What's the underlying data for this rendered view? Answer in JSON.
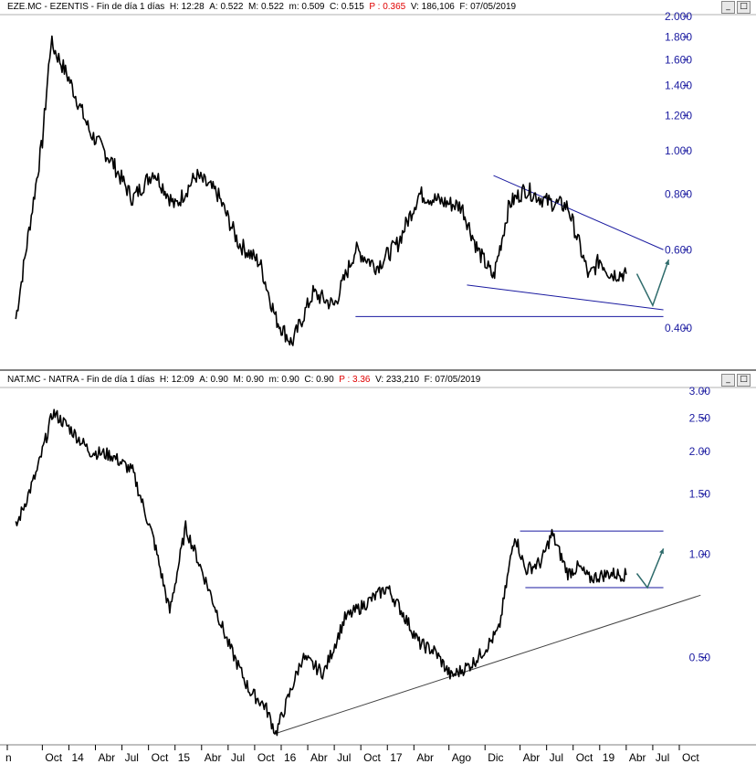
{
  "panels": [
    {
      "header": {
        "symbol": "EZE.MC - EZENTIS - Fin de día 1 días",
        "h_label": "H:",
        "h_val": "12:28",
        "a_label": "A:",
        "a_val": "0.522",
        "m_label": "M:",
        "m_val": "0.522",
        "min_label": "m:",
        "min_val": "0.509",
        "c_label": "C:",
        "c_val": "0.515",
        "p_label": "P :",
        "p_val": "0.365",
        "v_label": "V:",
        "v_val": "186,106",
        "f_label": "F:",
        "f_val": "07/05/2019"
      }
    },
    {
      "header": {
        "symbol": "NAT.MC - NATRA - Fin de día 1 días",
        "h_label": "H:",
        "h_val": "12:09",
        "a_label": "A:",
        "a_val": "0.90",
        "m_label": "M:",
        "m_val": "0.90",
        "min_label": "m:",
        "min_val": "0.90",
        "c_label": "C:",
        "c_val": "0.90",
        "p_label": "P :",
        "p_val": "3.36",
        "v_label": "V:",
        "v_val": "233,210",
        "f_label": "F:",
        "f_val": "07/05/2019"
      }
    }
  ],
  "window_buttons": [
    "_",
    "□"
  ],
  "chart_data": [
    {
      "type": "line",
      "title": "EZE.MC - EZENTIS",
      "scale": "log",
      "ylim": [
        0.33,
        2.0
      ],
      "y_ticks": [
        "2.000",
        "1.800",
        "1.600",
        "1.400",
        "1.200",
        "1.000",
        "0.800",
        "0.600",
        "0.400"
      ],
      "x": [
        2013.5,
        2013.75,
        2013.83,
        2014.0,
        2014.2,
        2014.4,
        2014.6,
        2014.8,
        2015.0,
        2015.2,
        2015.4,
        2015.6,
        2015.8,
        2015.95,
        2016.1,
        2016.3,
        2016.5,
        2016.7,
        2016.9,
        2017.1,
        2017.3,
        2017.5,
        2017.7,
        2017.85,
        2018.0,
        2018.15,
        2018.3,
        2018.5,
        2018.7,
        2018.9,
        2019.0,
        2019.1,
        2019.25
      ],
      "values": [
        0.42,
        1.05,
        1.75,
        1.45,
        1.1,
        0.95,
        0.78,
        0.9,
        0.75,
        0.88,
        0.8,
        0.62,
        0.56,
        0.42,
        0.37,
        0.48,
        0.45,
        0.6,
        0.55,
        0.62,
        0.8,
        0.77,
        0.75,
        0.6,
        0.52,
        0.76,
        0.82,
        0.77,
        0.75,
        0.52,
        0.57,
        0.53,
        0.53
      ],
      "trendlines": [
        {
          "x": [
            2018.0,
            2019.6
          ],
          "y": [
            0.88,
            0.6
          ]
        },
        {
          "x": [
            2017.75,
            2019.6
          ],
          "y": [
            0.5,
            0.44
          ]
        },
        {
          "x": [
            2016.7,
            2019.6
          ],
          "y": [
            0.425,
            0.425
          ]
        }
      ],
      "projection": {
        "x": [
          2019.35,
          2019.5,
          2019.65
        ],
        "y": [
          0.53,
          0.45,
          0.57
        ]
      }
    },
    {
      "type": "line",
      "title": "NAT.MC - NATRA",
      "scale": "log",
      "ylim": [
        0.29,
        3.0
      ],
      "y_ticks": [
        "3.00",
        "2.50",
        "2.00",
        "1.50",
        "1.00",
        "0.50"
      ],
      "x": [
        2013.5,
        2013.7,
        2013.85,
        2014.0,
        2014.2,
        2014.4,
        2014.6,
        2014.8,
        2014.95,
        2015.1,
        2015.3,
        2015.5,
        2015.7,
        2015.85,
        2015.95,
        2016.2,
        2016.4,
        2016.6,
        2016.8,
        2017.0,
        2017.15,
        2017.3,
        2017.45,
        2017.6,
        2017.8,
        2017.9,
        2018.05,
        2018.2,
        2018.3,
        2018.45,
        2018.55,
        2018.7,
        2018.8,
        2018.9,
        2019.1,
        2019.25
      ],
      "values": [
        1.2,
        1.75,
        2.6,
        2.35,
        2.0,
        1.95,
        1.75,
        1.1,
        0.68,
        1.2,
        0.82,
        0.55,
        0.4,
        0.36,
        0.3,
        0.5,
        0.45,
        0.65,
        0.72,
        0.8,
        0.67,
        0.55,
        0.52,
        0.44,
        0.48,
        0.52,
        0.6,
        1.15,
        0.9,
        0.95,
        1.15,
        0.88,
        0.92,
        0.85,
        0.88,
        0.87
      ],
      "trendlines": [
        {
          "x": [
            2015.95,
            2019.95
          ],
          "y": [
            0.3,
            0.76
          ]
        },
        {
          "x": [
            2018.25,
            2019.6
          ],
          "y": [
            1.17,
            1.17
          ]
        },
        {
          "x": [
            2018.3,
            2019.6
          ],
          "y": [
            0.8,
            0.8
          ]
        }
      ],
      "projection": {
        "x": [
          2019.35,
          2019.45,
          2019.6
        ],
        "y": [
          0.88,
          0.8,
          1.04
        ]
      }
    }
  ],
  "x_axis": {
    "labels": [
      "Jun",
      "Oct",
      "14",
      "Abr",
      "Jul",
      "Oct",
      "15",
      "Abr",
      "Jul",
      "Oct",
      "16",
      "Abr",
      "Jul",
      "Oct",
      "17",
      "Abr",
      "Ago",
      "Dic",
      "Abr",
      "Jul",
      "Oct",
      "19",
      "Abr",
      "Jul",
      "Oct"
    ],
    "visible": [
      "n",
      "Oct",
      "14",
      "Abr",
      "Jul",
      "Oct",
      "15",
      "Abr",
      "Jul",
      "Oct",
      "16",
      "Abr",
      "Jul",
      "Oct",
      "17",
      "Abr",
      "Ago",
      "Dic",
      "Abr",
      "Jul",
      "Oct",
      "19",
      "Abr",
      "Jul",
      "Oct"
    ],
    "values": [
      2013.42,
      2013.75,
      2014.0,
      2014.25,
      2014.5,
      2014.75,
      2015.0,
      2015.25,
      2015.5,
      2015.75,
      2016.0,
      2016.25,
      2016.5,
      2016.75,
      2017.0,
      2017.25,
      2017.58,
      2017.92,
      2018.25,
      2018.5,
      2018.75,
      2019.0,
      2019.25,
      2019.5,
      2019.75
    ]
  },
  "colors": {
    "price": "#000000",
    "trend_blue": "#1a1aa0",
    "trend_gray": "#444444",
    "axis_text": "#1a1aa0",
    "projection": "#2e6b6b",
    "header_red": "#e00000"
  }
}
